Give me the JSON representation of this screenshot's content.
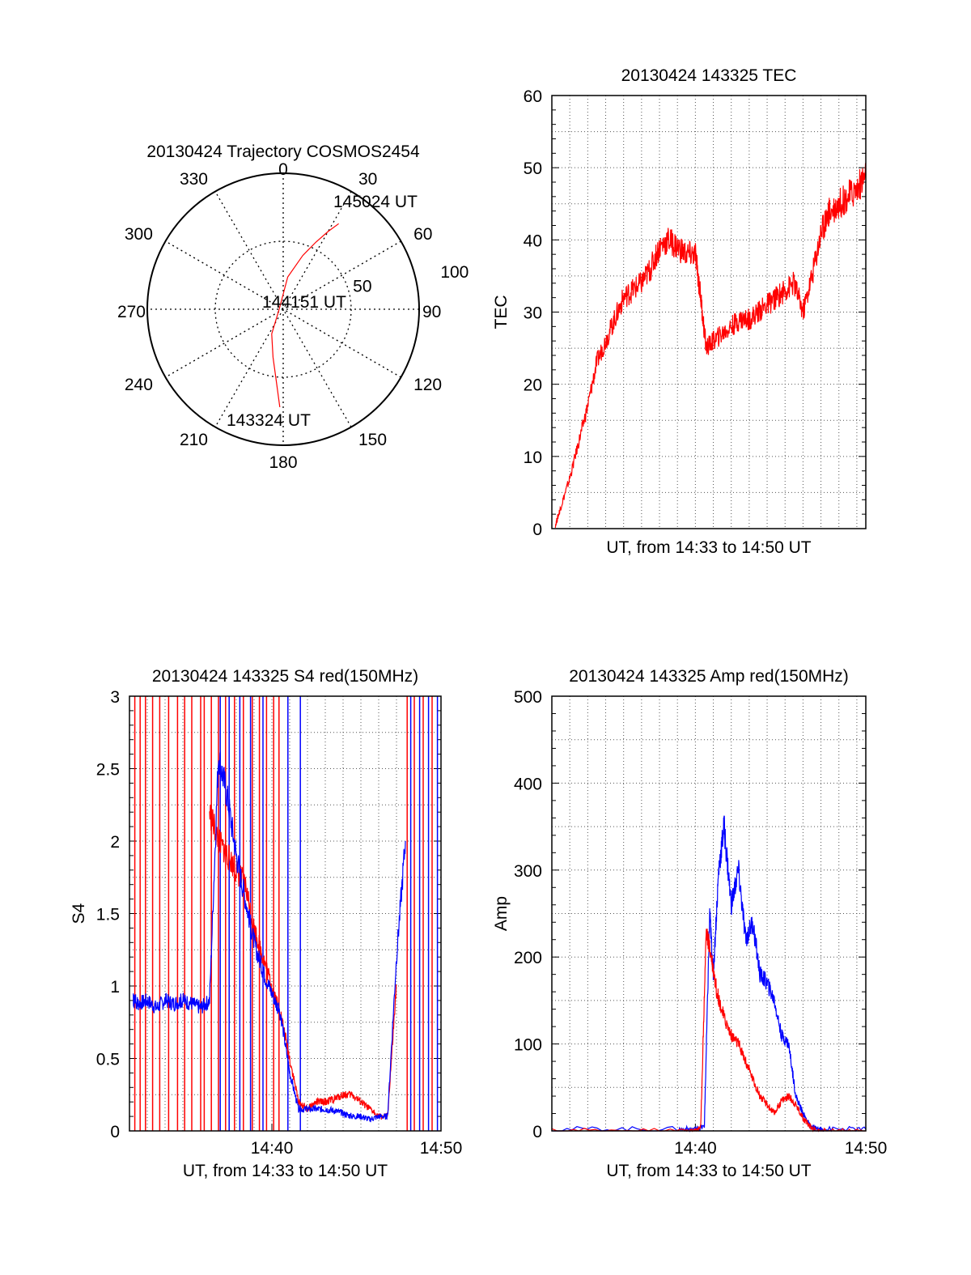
{
  "chart_data": [
    {
      "type": "polar",
      "title": "20130424 Trajectory COSMOS2454",
      "azimuth_labels": [
        "0",
        "30",
        "60",
        "90",
        "120",
        "150",
        "180",
        "210",
        "240",
        "270",
        "300",
        "330"
      ],
      "radial_labels": [
        "50",
        "100"
      ],
      "rlim": [
        0,
        100
      ],
      "grid": true,
      "series": [
        {
          "color": "#ff0000",
          "points": [
            [
              33,
              75
            ],
            [
              30,
              66
            ],
            [
              26,
              55
            ],
            [
              20,
              42
            ],
            [
              8,
              24
            ],
            [
              -90,
              3
            ],
            [
              -155,
              20
            ],
            [
              -168,
              36
            ],
            [
              -175,
              55
            ],
            [
              -178,
              72
            ]
          ]
        }
      ],
      "annotations": [
        {
          "text": "145024 UT",
          "az": 33,
          "r": 75
        },
        {
          "text": "144151 UT",
          "az": 90,
          "r": 0
        },
        {
          "text": "143324 UT",
          "az": -178,
          "r": 72
        }
      ]
    },
    {
      "type": "line",
      "title": "20130424 143325 TEC",
      "xlabel": "UT, from 14:33 to 14:50 UT",
      "ylabel": "TEC",
      "xlim": [
        0,
        17.5
      ],
      "ylim": [
        0,
        60
      ],
      "yticks": [
        "0",
        "10",
        "20",
        "30",
        "40",
        "50",
        "60"
      ],
      "xticks": [],
      "grid": true,
      "series": [
        {
          "color": "#ff0000",
          "x": [
            0.2,
            0.5,
            1.0,
            1.5,
            2.0,
            2.5,
            3.0,
            3.5,
            4.0,
            4.5,
            5.0,
            5.5,
            6.0,
            6.5,
            7.0,
            7.5,
            8.0,
            8.3,
            8.6,
            9.0,
            9.5,
            10.0,
            10.5,
            11.0,
            11.5,
            12.0,
            12.5,
            13.0,
            13.5,
            14.0,
            14.5,
            15.0,
            15.3,
            15.5,
            16.0,
            16.5,
            17.0,
            17.5
          ],
          "y": [
            0.5,
            3,
            7,
            12,
            17,
            23,
            26,
            29,
            32,
            33,
            34,
            36,
            39,
            40,
            39,
            38,
            38,
            32,
            25,
            26,
            27,
            28,
            29,
            29,
            30,
            31,
            32,
            33,
            34,
            30,
            35,
            41,
            43,
            44,
            45,
            46,
            47,
            49
          ]
        }
      ]
    },
    {
      "type": "line",
      "title": "20130424 143325 S4 red(150MHz)",
      "xlabel": "UT, from 14:33 to 14:50 UT",
      "ylabel": "S4",
      "xlim": [
        0,
        17.5
      ],
      "ylim": [
        0,
        3
      ],
      "yticks": [
        "0",
        "0.5",
        "1",
        "1.5",
        "2",
        "2.5",
        "3"
      ],
      "xticks": [
        {
          "label": "14:40",
          "x": 8
        },
        {
          "label": "14:50",
          "x": 17.5
        }
      ],
      "grid": true,
      "series": [
        {
          "color": "#ff0000",
          "x": [
            4.5,
            5.0,
            5.5,
            6.0,
            6.5,
            7.0,
            7.5,
            8.0,
            8.5,
            9.0,
            9.5,
            10.0,
            10.5,
            11.0,
            11.5,
            12.0,
            12.5,
            13.0,
            13.5,
            14.0,
            14.5,
            15.0
          ],
          "y": [
            2.2,
            2.0,
            1.9,
            1.8,
            1.7,
            1.4,
            1.2,
            1.0,
            0.8,
            0.5,
            0.2,
            0.15,
            0.2,
            0.2,
            0.22,
            0.25,
            0.25,
            0.2,
            0.15,
            0.1,
            0.1,
            1.0
          ]
        },
        {
          "color": "#0000ff",
          "x": [
            0.2,
            0.5,
            1.0,
            1.5,
            2.0,
            2.5,
            3.0,
            3.5,
            4.0,
            4.5,
            5.0,
            5.5,
            6.0,
            6.5,
            7.0,
            7.5,
            8.0,
            8.5,
            9.0,
            9.5,
            10.0,
            10.5,
            11.0,
            11.5,
            12.0,
            12.5,
            13.0,
            13.5,
            14.0,
            14.5,
            15.0,
            15.5
          ],
          "y": [
            0.9,
            0.88,
            0.9,
            0.85,
            0.9,
            0.88,
            0.9,
            0.88,
            0.85,
            0.9,
            2.6,
            2.3,
            1.9,
            1.6,
            1.3,
            1.1,
            0.95,
            0.8,
            0.4,
            0.15,
            0.15,
            0.15,
            0.15,
            0.14,
            0.12,
            0.1,
            0.1,
            0.08,
            0.1,
            0.1,
            1.2,
            2.0
          ]
        }
      ],
      "spikes": [
        {
          "color": "#ff0000",
          "x": [
            0.3,
            0.6,
            0.9,
            1.3,
            1.7,
            2.2,
            2.7,
            3.1,
            3.5,
            4.0,
            4.2,
            4.6,
            5.0,
            5.4,
            5.9,
            6.4,
            6.9,
            7.3,
            7.7,
            8.1,
            8.4,
            15.6,
            16.0,
            16.5,
            17.0
          ]
        },
        {
          "color": "#0000ff",
          "x": [
            5.1,
            5.6,
            6.2,
            6.8,
            7.5,
            8.9,
            9.6,
            15.8,
            16.3,
            16.8,
            17.3
          ]
        }
      ]
    },
    {
      "type": "line",
      "title": "20130424 143325 Amp red(150MHz)",
      "xlabel": "UT, from 14:33 to 14:50 UT",
      "ylabel": "Amp",
      "xlim": [
        0,
        17.5
      ],
      "ylim": [
        0,
        500
      ],
      "yticks": [
        "0",
        "100",
        "200",
        "300",
        "400",
        "500"
      ],
      "xticks": [
        {
          "label": "14:40",
          "x": 8
        },
        {
          "label": "14:50",
          "x": 17.5
        }
      ],
      "grid": true,
      "series": [
        {
          "color": "#0000ff",
          "x": [
            0,
            7.0,
            8.0,
            8.5,
            8.8,
            9.0,
            9.3,
            9.6,
            10.0,
            10.4,
            10.8,
            11.2,
            11.6,
            12.0,
            12.4,
            12.8,
            13.2,
            13.6,
            14.0,
            14.4,
            14.8,
            15.2,
            17.5
          ],
          "y": [
            2,
            2,
            2,
            5,
            250,
            180,
            300,
            350,
            260,
            300,
            220,
            240,
            180,
            170,
            150,
            110,
            100,
            40,
            20,
            5,
            2,
            2,
            2
          ]
        },
        {
          "color": "#ff0000",
          "x": [
            0,
            7.5,
            8.0,
            8.3,
            8.6,
            8.9,
            9.2,
            9.6,
            10.0,
            10.4,
            10.8,
            11.2,
            11.6,
            12.0,
            12.4,
            12.8,
            13.2,
            13.6,
            14.0,
            14.4,
            14.8,
            15.2,
            17.5
          ],
          "y": [
            0,
            0,
            0,
            5,
            230,
            200,
            160,
            130,
            110,
            100,
            80,
            60,
            40,
            30,
            20,
            35,
            40,
            30,
            15,
            5,
            0,
            0,
            0
          ]
        }
      ]
    }
  ]
}
